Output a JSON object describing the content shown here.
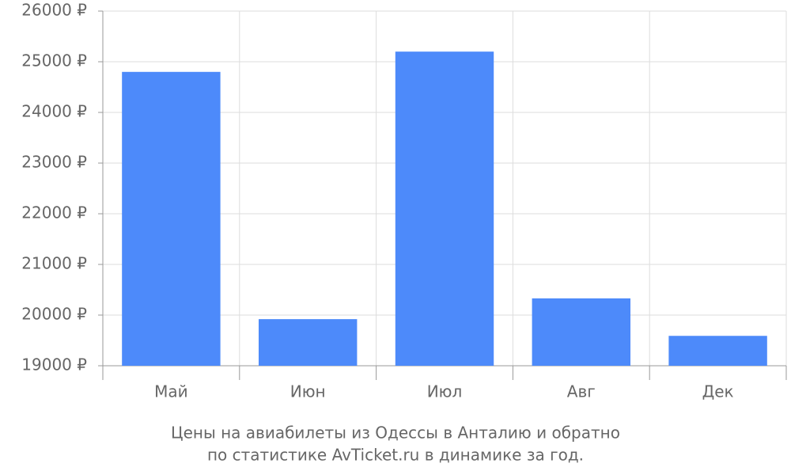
{
  "chart_data": {
    "type": "bar",
    "title": [
      "Цены на авиабилеты из Одессы в Анталию и обратно",
      "по статистике AvTicket.ru в динамике за год."
    ],
    "categories": [
      "Май",
      "Июн",
      "Июл",
      "Авг",
      "Дек"
    ],
    "values": [
      24800,
      19920,
      25200,
      20330,
      19590
    ],
    "color": "#4d8afa",
    "ylim": [
      19000,
      26000
    ],
    "yticks": [
      {
        "value": 19000,
        "label": "19000 ₽"
      },
      {
        "value": 20000,
        "label": "20000 ₽"
      },
      {
        "value": 21000,
        "label": "21000 ₽"
      },
      {
        "value": 22000,
        "label": "22000 ₽"
      },
      {
        "value": 23000,
        "label": "23000 ₽"
      },
      {
        "value": 24000,
        "label": "24000 ₽"
      },
      {
        "value": 25000,
        "label": "25000 ₽"
      },
      {
        "value": 26000,
        "label": "26000 ₽"
      }
    ],
    "grid": true
  }
}
